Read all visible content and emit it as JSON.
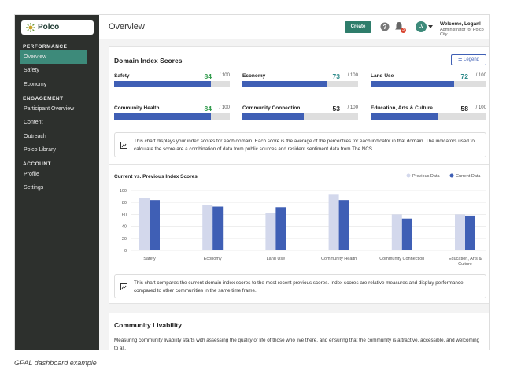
{
  "sidebar": {
    "logo": "Polco",
    "sections": [
      {
        "heading": "PERFORMANCE",
        "items": [
          "Overview",
          "Safety",
          "Economy"
        ]
      },
      {
        "heading": "ENGAGEMENT",
        "items": [
          "Participant Overview",
          "Content",
          "Outreach",
          "Polco Library"
        ]
      },
      {
        "heading": "ACCOUNT",
        "items": [
          "Profile",
          "Settings"
        ]
      }
    ]
  },
  "header": {
    "title": "Overview",
    "create_button": "Create",
    "notification_count": "3",
    "avatar": "LV",
    "welcome": "Welcome, Logan!",
    "role": "Administrator for Polco City"
  },
  "domain_card": {
    "title": "Domain Index Scores",
    "legend_button": "Legend",
    "score_max": {
      "value": 100,
      "label": "/ 100"
    },
    "domains": [
      {
        "name": "Safety",
        "score": 84,
        "color": "#2e9a4a"
      },
      {
        "name": "Economy",
        "score": 73,
        "color": "#2e8a8a"
      },
      {
        "name": "Land Use",
        "score": 72,
        "color": "#2e8a8a"
      },
      {
        "name": "Community Health",
        "score": 84,
        "color": "#2e9a4a"
      },
      {
        "name": "Community Connection",
        "score": 53,
        "color": "#222222"
      },
      {
        "name": "Education, Arts & Culture",
        "score": 58,
        "color": "#222222"
      }
    ],
    "info_1": "This chart displays your index scores for each domain. Each score is the average of the percentiles for each indicator in that domain. The indicators used to calculate the score are a combination of data from public sources and resident sentiment data from The NCS.",
    "chart": {
      "type": "bar",
      "title": "Current vs. Previous Index Scores",
      "series": [
        {
          "name": "Previous Data",
          "color": "#d3d8ec",
          "values": [
            88,
            76,
            62,
            93,
            60,
            60
          ]
        },
        {
          "name": "Current Data",
          "color": "#3f5fb5"
        }
      ],
      "ylim": [
        0,
        100
      ],
      "yticks": [
        0,
        20,
        40,
        60,
        80,
        100
      ],
      "grid": true
    },
    "info_2": "This chart compares the current domain index scores to the most recent previous scores. Index scores are relative measures and display performance compared to other communities in the same time frame."
  },
  "livability_card": {
    "title": "Community Livability",
    "text": "Measuring community livability starts with assessing the quality of life of those who live there, and ensuring that the community is attractive, accessible, and welcoming to all."
  },
  "caption": "GPAL dashboard example"
}
